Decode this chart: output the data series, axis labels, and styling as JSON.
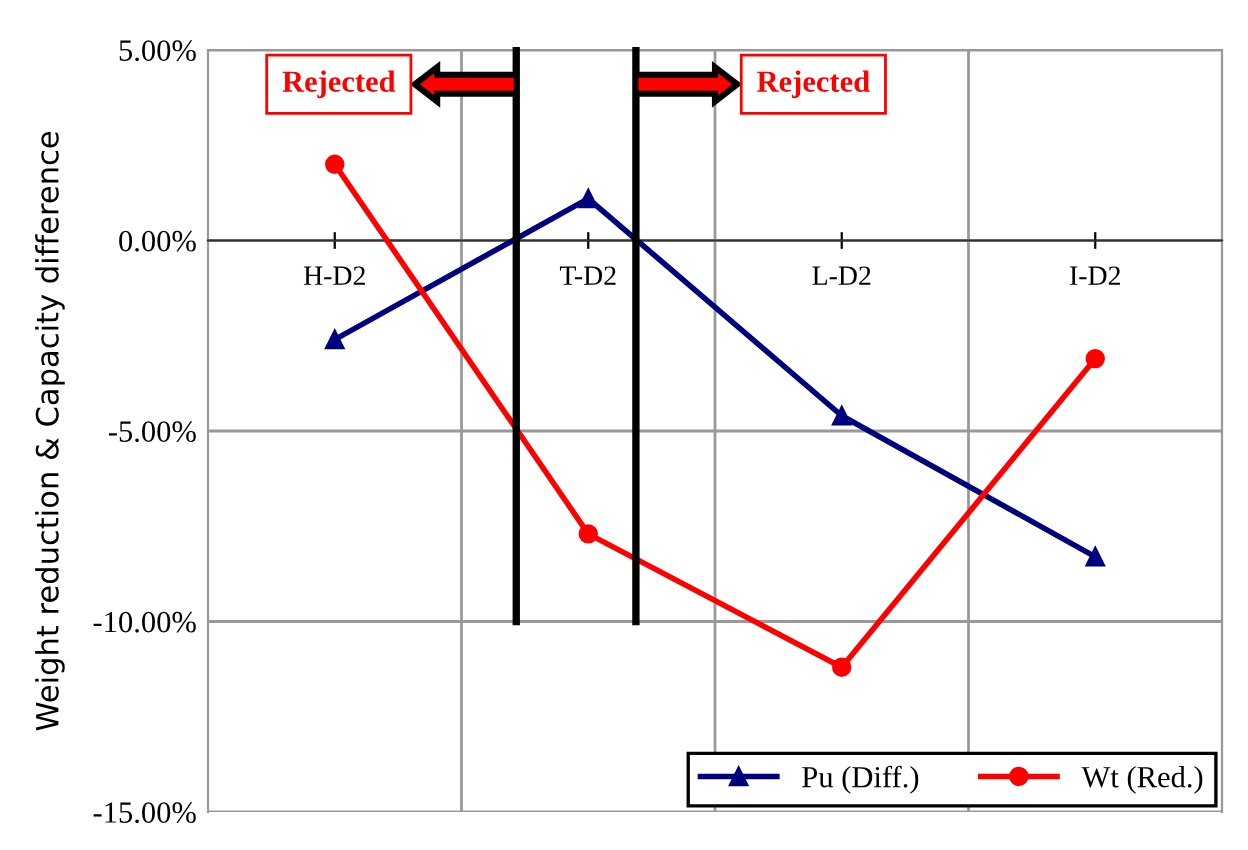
{
  "chart_data": {
    "type": "line",
    "ylabel": "Weight reduction & Capacity difference",
    "categories": [
      "H-D2",
      "T-D2",
      "L-D2",
      "I-D2"
    ],
    "series": [
      {
        "name": "Pu (Diff.)",
        "color": "#00007f",
        "marker": "triangle",
        "values": [
          -2.6,
          1.1,
          -4.6,
          -8.3
        ]
      },
      {
        "name": "Wt (Red.)",
        "color": "#ff0000",
        "marker": "circle",
        "values": [
          2.0,
          -7.7,
          -11.2,
          -3.1
        ]
      }
    ],
    "ylim": [
      -15,
      5
    ],
    "yticks": [
      {
        "value": -15,
        "label": "-15.00%"
      },
      {
        "value": -10,
        "label": "-10.00%"
      },
      {
        "value": -5,
        "label": "-5.00%"
      },
      {
        "value": 0,
        "label": "0.00%"
      },
      {
        "value": 5,
        "label": "5.00%"
      }
    ],
    "annotations": [
      "Rejected",
      "Rejected"
    ],
    "grid": true,
    "legend": "bottom right",
    "line_style": "solid"
  }
}
